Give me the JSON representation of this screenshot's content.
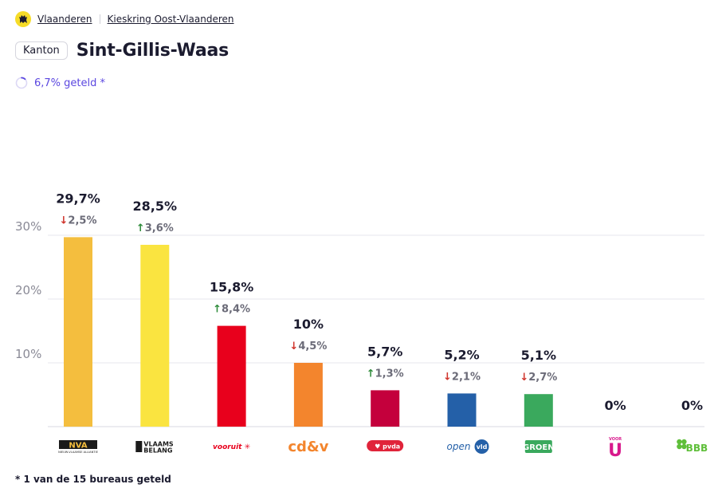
{
  "breadcrumb": {
    "items": [
      {
        "label": "Vlaanderen"
      },
      {
        "label": "Kieskring Oost-Vlaanderen"
      }
    ]
  },
  "header": {
    "badge": "Kanton",
    "title": "Sint-Gillis-Waas"
  },
  "status": {
    "counted_text": "6,7% geteld *",
    "counted_fraction": 0.067,
    "accent_color": "#5b47e0"
  },
  "footnote": "* 1 van de 15 bureaus geteld",
  "colors": {
    "up": "#2e8b3a",
    "down": "#d0342c",
    "text": "#1b1b2f",
    "muted": "#6b6b78",
    "grid": "#e7e7ec"
  },
  "chart_data": {
    "type": "bar",
    "ylim": [
      0,
      30
    ],
    "yticks": [
      {
        "value": 10,
        "label": "10%"
      },
      {
        "value": 20,
        "label": "20%"
      },
      {
        "value": 30,
        "label": "30%"
      }
    ],
    "grid": true,
    "parties": [
      {
        "name": "N-VA",
        "value": 29.7,
        "label": "29,7%",
        "change_dir": "down",
        "change": "2,5%",
        "color": "#f4be3e",
        "logo": "NVA",
        "logo_sub": "NIEUW-VLAAMSE ALLIANTIE"
      },
      {
        "name": "Vlaams Belang",
        "value": 28.5,
        "label": "28,5%",
        "change_dir": "up",
        "change": "3,6%",
        "color": "#fae440",
        "logo": "VLAAMS",
        "logo_sub": "BELANG"
      },
      {
        "name": "Vooruit",
        "value": 15.8,
        "label": "15,8%",
        "change_dir": "up",
        "change": "8,4%",
        "color": "#e8001c",
        "logo": "vooruit"
      },
      {
        "name": "cd&v",
        "value": 10,
        "label": "10%",
        "change_dir": "down",
        "change": "4,5%",
        "color": "#f3852d",
        "logo": "cd&v"
      },
      {
        "name": "PVDA",
        "value": 5.7,
        "label": "5,7%",
        "change_dir": "up",
        "change": "1,3%",
        "color": "#c4003c",
        "logo": "pvda"
      },
      {
        "name": "Open Vld",
        "value": 5.2,
        "label": "5,2%",
        "change_dir": "down",
        "change": "2,1%",
        "color": "#2460a8",
        "logo": "open",
        "logo_sub": "vld"
      },
      {
        "name": "Groen",
        "value": 5.1,
        "label": "5,1%",
        "change_dir": "down",
        "change": "2,7%",
        "color": "#3aa95d",
        "logo": "GROEN"
      },
      {
        "name": "Voor U",
        "value": 0,
        "label": "0%",
        "change_dir": "",
        "change": "",
        "color": "#d8198c",
        "logo": "VOOR",
        "logo_sub": "U"
      },
      {
        "name": "BBB",
        "value": 0,
        "label": "0%",
        "change_dir": "",
        "change": "",
        "color": "#5fbf3a",
        "logo": "BBB"
      }
    ]
  }
}
